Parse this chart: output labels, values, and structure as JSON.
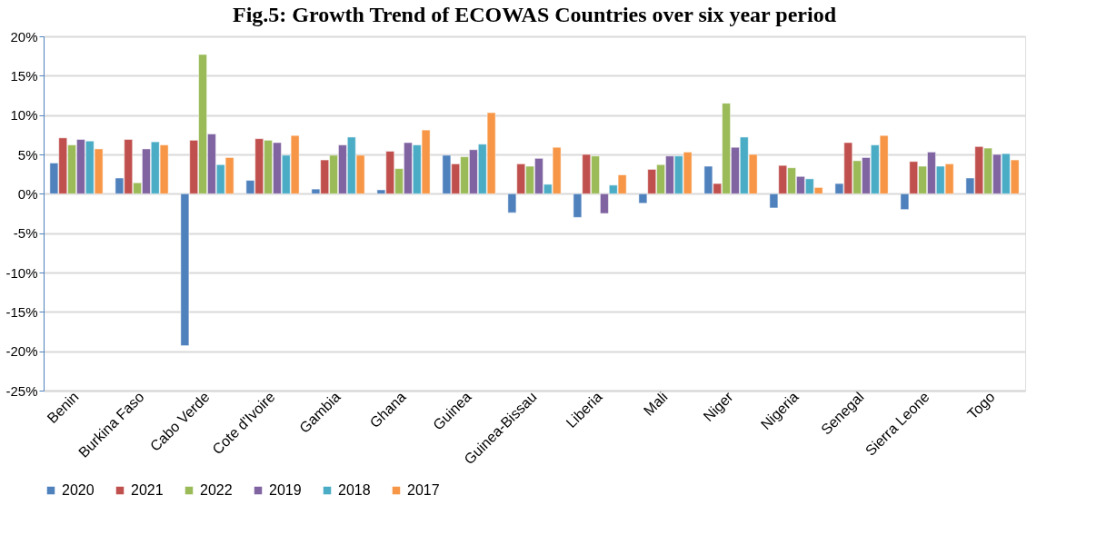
{
  "chart_data": {
    "type": "bar",
    "title": "Fig.5: Growth Trend of ECOWAS Countries over six year period",
    "categories": [
      "Benin",
      "Burkina Faso",
      "Cabo Verde",
      "Cote d'Ivoire",
      "Gambia",
      "Ghana",
      "Guinea",
      "Guinea-Bissau",
      "Liberia",
      "Mali",
      "Niger",
      "Nigeria",
      "Senegal",
      "Sierra Leone",
      "Togo"
    ],
    "series": [
      {
        "name": "2020",
        "color": "#4f81bd",
        "values": [
          3.9,
          2.0,
          -19.3,
          1.7,
          0.6,
          0.5,
          4.9,
          -2.4,
          -3.0,
          -1.2,
          3.5,
          -1.8,
          1.3,
          -2.0,
          2.0
        ]
      },
      {
        "name": "2021",
        "color": "#c0504d",
        "values": [
          7.1,
          6.9,
          6.8,
          7.0,
          4.3,
          5.4,
          3.8,
          3.8,
          5.0,
          3.1,
          1.3,
          3.6,
          6.5,
          4.1,
          6.0
        ]
      },
      {
        "name": "2022",
        "color": "#9bbb59",
        "values": [
          6.2,
          1.4,
          17.7,
          6.8,
          4.9,
          3.2,
          4.7,
          3.5,
          4.8,
          3.7,
          11.5,
          3.3,
          4.2,
          3.5,
          5.8
        ]
      },
      {
        "name": "2019",
        "color": "#8064a2",
        "values": [
          6.9,
          5.7,
          7.6,
          6.5,
          6.2,
          6.5,
          5.6,
          4.5,
          -2.5,
          4.8,
          5.9,
          2.2,
          4.6,
          5.3,
          5.0
        ]
      },
      {
        "name": "2018",
        "color": "#4bacc6",
        "values": [
          6.7,
          6.6,
          3.7,
          4.9,
          7.2,
          6.2,
          6.3,
          1.2,
          1.1,
          4.8,
          7.2,
          1.9,
          6.2,
          3.5,
          5.1
        ]
      },
      {
        "name": "2017",
        "color": "#f79646",
        "values": [
          5.7,
          6.2,
          4.6,
          7.4,
          4.9,
          8.1,
          10.3,
          5.9,
          2.4,
          5.3,
          5.0,
          0.8,
          7.4,
          3.8,
          4.3
        ]
      }
    ],
    "ylim": [
      -25,
      20
    ],
    "yticks": [
      {
        "value": -25,
        "label": "-25%"
      },
      {
        "value": -20,
        "label": "-20%"
      },
      {
        "value": -15,
        "label": "-15%"
      },
      {
        "value": -10,
        "label": "-10%"
      },
      {
        "value": -5,
        "label": "-5%"
      },
      {
        "value": 0,
        "label": "0%"
      },
      {
        "value": 5,
        "label": "5%"
      },
      {
        "value": 10,
        "label": "10%"
      },
      {
        "value": 15,
        "label": "15%"
      },
      {
        "value": 20,
        "label": "20%"
      }
    ],
    "grid": "y",
    "legend": "bottom"
  }
}
